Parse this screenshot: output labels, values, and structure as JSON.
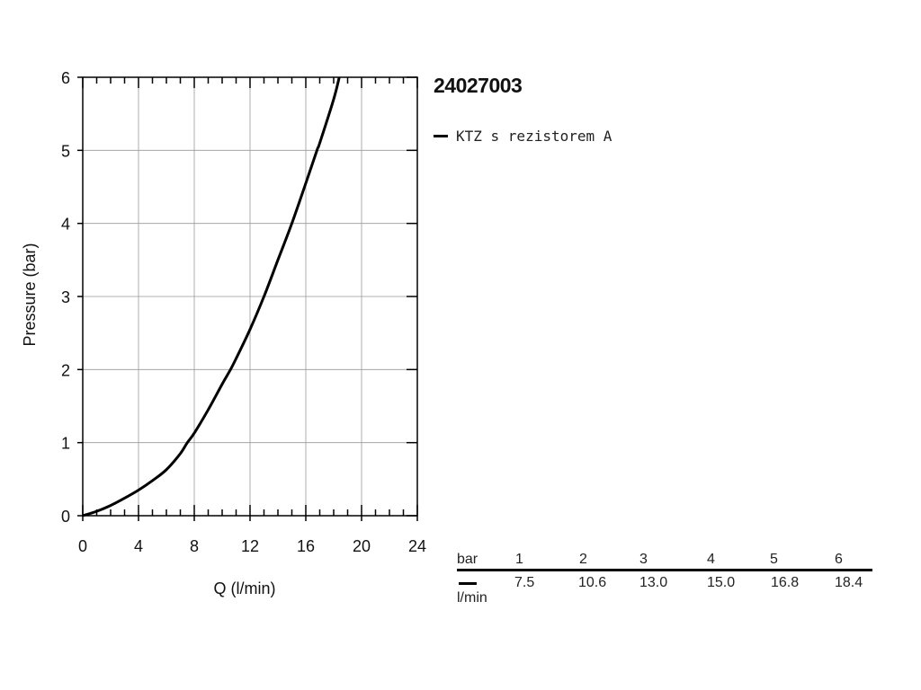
{
  "chart_data": {
    "type": "line",
    "title": "",
    "xlabel": "Q (l/min)",
    "ylabel": "Pressure (bar)",
    "xlim": [
      0,
      24
    ],
    "ylim": [
      0,
      6
    ],
    "xticks": [
      "0",
      "4",
      "8",
      "12",
      "16",
      "20",
      "24"
    ],
    "yticks": [
      "0",
      "1",
      "2",
      "3",
      "4",
      "5",
      "6"
    ],
    "grid": true,
    "series": [
      {
        "name": "KTZ s rezistorem A",
        "color": "#000000",
        "x": [
          0,
          1,
          2,
          3,
          4,
          5,
          6,
          7,
          7.5,
          8,
          9,
          10,
          10.6,
          11,
          12,
          13,
          14,
          15,
          16,
          16.8,
          17,
          18,
          18.4
        ],
        "y": [
          0,
          0.06,
          0.14,
          0.24,
          0.35,
          0.48,
          0.63,
          0.85,
          1.0,
          1.13,
          1.45,
          1.8,
          2.0,
          2.15,
          2.55,
          3.0,
          3.5,
          4.0,
          4.55,
          5.0,
          5.1,
          5.7,
          6.0
        ]
      }
    ]
  },
  "side": {
    "title": "24027003",
    "legend_label": "KTZ s rezistorem A"
  },
  "table": {
    "row1_label": "bar",
    "row2_label": "l/min",
    "bar": [
      "1",
      "2",
      "3",
      "4",
      "5",
      "6"
    ],
    "flow": [
      "7.5",
      "10.6",
      "13.0",
      "15.0",
      "16.8",
      "18.4"
    ]
  }
}
